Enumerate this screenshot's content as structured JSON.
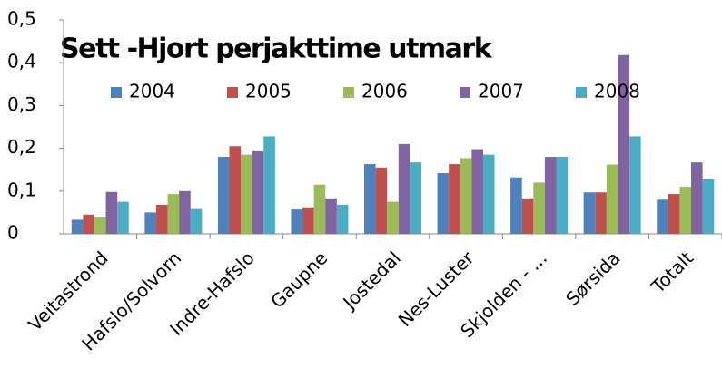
{
  "chart_data": {
    "type": "bar",
    "title": "Sett -Hjort perjakttime utmark",
    "categories": [
      "Veitastrond",
      "Hafslo/Solvorn",
      "Indre-Hafslo",
      "Gaupne",
      "Jostedal",
      "Nes-Luster",
      "Skjolden - ...",
      "Sørsida",
      "Totalt"
    ],
    "series": [
      {
        "name": "2004",
        "color": "#4f81bd",
        "values": [
          0.033,
          0.05,
          0.18,
          0.057,
          0.163,
          0.142,
          0.132,
          0.097,
          0.08
        ]
      },
      {
        "name": "2005",
        "color": "#c0504d",
        "values": [
          0.045,
          0.068,
          0.205,
          0.062,
          0.155,
          0.163,
          0.083,
          0.097,
          0.093
        ]
      },
      {
        "name": "2006",
        "color": "#9bbb59",
        "values": [
          0.04,
          0.093,
          0.185,
          0.115,
          0.075,
          0.177,
          0.12,
          0.162,
          0.11
        ]
      },
      {
        "name": "2007",
        "color": "#8064a2",
        "values": [
          0.098,
          0.1,
          0.193,
          0.083,
          0.21,
          0.198,
          0.18,
          0.418,
          0.167
        ]
      },
      {
        "name": "2008",
        "color": "#4bacc6",
        "values": [
          0.075,
          0.058,
          0.228,
          0.068,
          0.167,
          0.185,
          0.18,
          0.228,
          0.128
        ]
      }
    ],
    "ylim": [
      0,
      0.5
    ],
    "yticks": [
      0,
      {
        "value": 0.1,
        "label": "0,1"
      },
      {
        "value": 0.2,
        "label": "0,2"
      },
      {
        "value": 0.3,
        "label": "0,3"
      },
      {
        "value": 0.4,
        "label": "0,4"
      },
      {
        "value": 0.5,
        "label": "0,5"
      }
    ],
    "grid": false,
    "legend": "top"
  }
}
